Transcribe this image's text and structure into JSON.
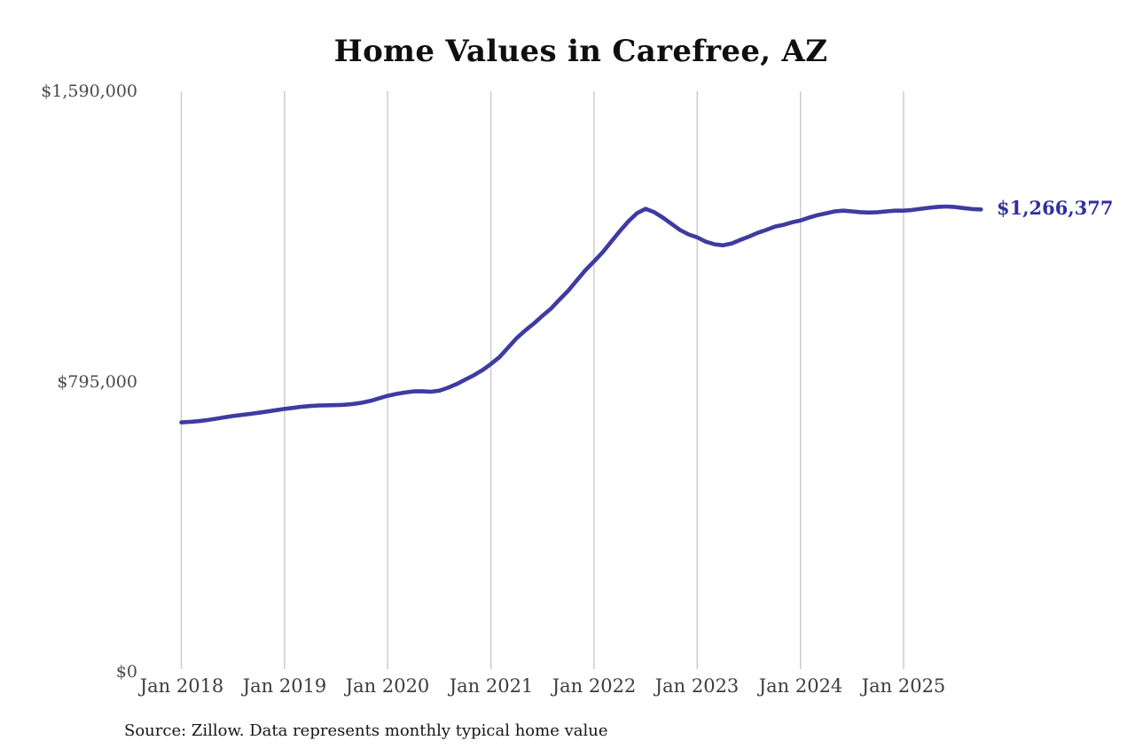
{
  "chart": {
    "title": "Home Values in Carefree, AZ",
    "end_label": "$1,266,377",
    "source_note": "Source: Zillow. Data represents monthly typical home value",
    "colors": {
      "line": "#3e3ba1",
      "end_label_text": "#32309b",
      "gridline": "#c9c9c9",
      "y_axis_text": "#4a4a4a",
      "x_axis_text": "#3d3d3d",
      "title_text": "#0f0f0f",
      "background": "#ffffff"
    }
  },
  "chart_data": {
    "type": "line",
    "title": "Home Values in Carefree, AZ",
    "source": "Source: Zillow. Data represents monthly typical home value",
    "grid": "vertical-yearly-only",
    "legend": "none",
    "final_value": 1266377,
    "final_value_label": "$1,266,377",
    "x_tick_labels": [
      "Jan 2018",
      "Jan 2019",
      "Jan 2020",
      "Jan 2021",
      "Jan 2022",
      "Jan 2023",
      "Jan 2024",
      "Jan 2025"
    ],
    "y_ticks": [
      {
        "value": 1590000,
        "label": "$1,590,000"
      },
      {
        "value": 795000,
        "label": "$795,000"
      },
      {
        "value": 0,
        "label": "$0"
      }
    ],
    "y_axis_range": [
      0,
      1590000
    ],
    "months": [
      "2018-01",
      "2018-02",
      "2018-03",
      "2018-04",
      "2018-05",
      "2018-06",
      "2018-07",
      "2018-08",
      "2018-09",
      "2018-10",
      "2018-11",
      "2018-12",
      "2019-01",
      "2019-02",
      "2019-03",
      "2019-04",
      "2019-05",
      "2019-06",
      "2019-07",
      "2019-08",
      "2019-09",
      "2019-10",
      "2019-11",
      "2019-12",
      "2020-01",
      "2020-02",
      "2020-03",
      "2020-04",
      "2020-05",
      "2020-06",
      "2020-07",
      "2020-08",
      "2020-09",
      "2020-10",
      "2020-11",
      "2020-12",
      "2021-01",
      "2021-02",
      "2021-03",
      "2021-04",
      "2021-05",
      "2021-06",
      "2021-07",
      "2021-08",
      "2021-09",
      "2021-10",
      "2021-11",
      "2021-12",
      "2022-01",
      "2022-02",
      "2022-03",
      "2022-04",
      "2022-05",
      "2022-06",
      "2022-07",
      "2022-08",
      "2022-09",
      "2022-10",
      "2022-11",
      "2022-12",
      "2023-01",
      "2023-02",
      "2023-03",
      "2023-04",
      "2023-05",
      "2023-06",
      "2023-07",
      "2023-08",
      "2023-09",
      "2023-10",
      "2023-11",
      "2023-12",
      "2024-01",
      "2024-02",
      "2024-03",
      "2024-04",
      "2024-05",
      "2024-06",
      "2024-07",
      "2024-08",
      "2024-09",
      "2024-10",
      "2024-11",
      "2024-12",
      "2025-01",
      "2025-02",
      "2025-03",
      "2025-04",
      "2025-05",
      "2025-06",
      "2025-07",
      "2025-08",
      "2025-09",
      "2025-10"
    ],
    "values": [
      683000,
      684500,
      686500,
      689500,
      693000,
      697000,
      700500,
      703500,
      706500,
      709500,
      713000,
      716500,
      720000,
      723000,
      726000,
      728000,
      729500,
      730000,
      730500,
      731500,
      733500,
      737000,
      742000,
      749000,
      756000,
      761000,
      765000,
      768000,
      768500,
      767000,
      770000,
      778000,
      788000,
      800000,
      812000,
      826000,
      843000,
      862000,
      888000,
      914000,
      935000,
      954000,
      975000,
      995000,
      1020000,
      1044000,
      1072000,
      1100000,
      1124000,
      1149000,
      1178000,
      1207000,
      1234000,
      1256000,
      1268000,
      1259000,
      1244000,
      1227000,
      1210000,
      1198000,
      1190000,
      1178000,
      1171000,
      1168000,
      1173000,
      1183000,
      1192000,
      1202000,
      1210000,
      1219000,
      1224000,
      1231000,
      1236000,
      1244000,
      1251000,
      1256000,
      1261000,
      1263000,
      1261000,
      1259000,
      1258000,
      1259000,
      1261000,
      1263000,
      1263000,
      1265000,
      1268000,
      1271000,
      1273500,
      1274500,
      1273000,
      1270000,
      1267500,
      1266377
    ]
  }
}
